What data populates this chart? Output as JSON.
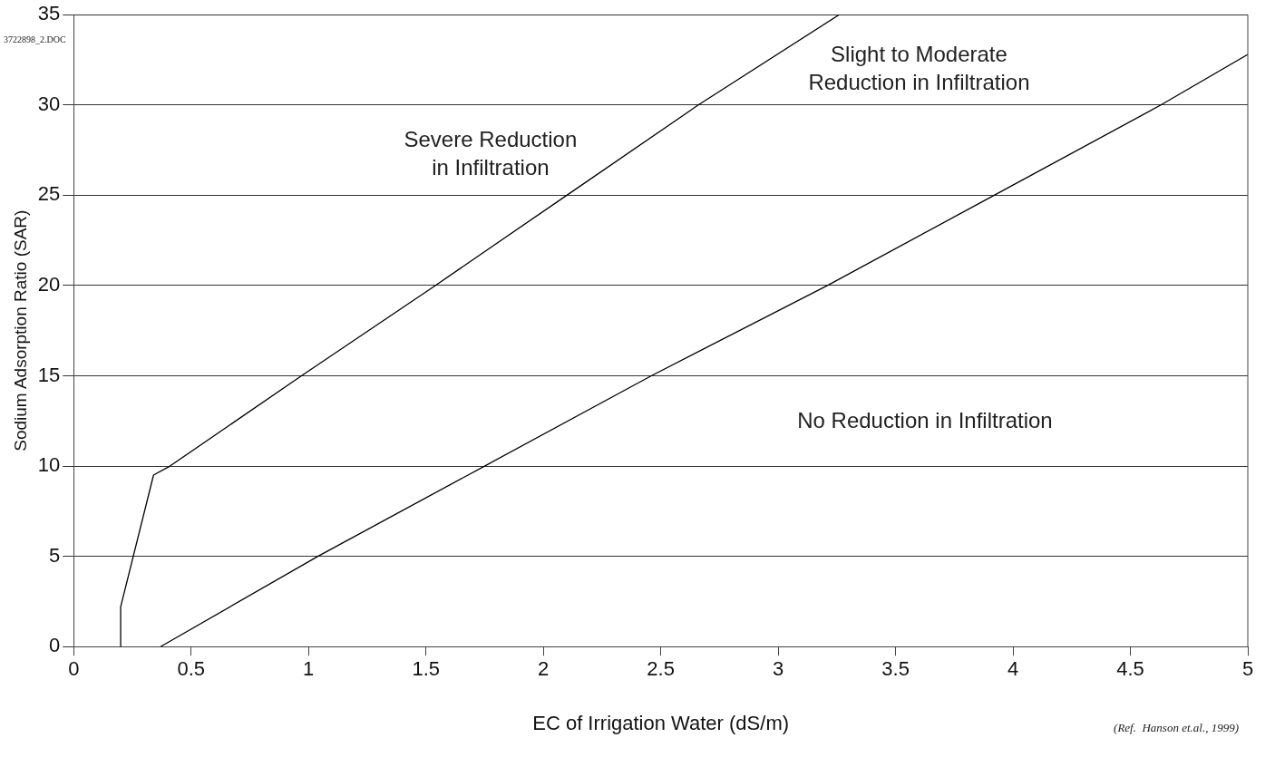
{
  "chart_data": {
    "type": "line",
    "xlabel": "EC of Irrigation Water (dS/m)",
    "ylabel": "Sodium Adsorption Ratio (SAR)",
    "xlim": [
      0,
      5
    ],
    "xticks": [
      0,
      0.5,
      1,
      1.5,
      2,
      2.5,
      3,
      3.5,
      4,
      4.5,
      5
    ],
    "ylim": [
      0,
      35
    ],
    "yticks": [
      0,
      5,
      10,
      15,
      20,
      25,
      30,
      35
    ],
    "grid": "y",
    "legend": false,
    "marker": "none",
    "line_style": "solid",
    "series": [
      {
        "color": "#000000",
        "x": [
          0.2,
          0.2,
          0.34,
          0.41,
          0.97,
          1.54,
          2.1,
          2.66,
          3.26
        ],
        "values": [
          0,
          2.2,
          9.5,
          10,
          15,
          20,
          25,
          30,
          35
        ]
      },
      {
        "color": "#000000",
        "x": [
          0.37,
          1.04,
          1.75,
          2.46,
          3.21,
          3.92,
          4.63,
          5
        ],
        "values": [
          0,
          5,
          10,
          15,
          20,
          25,
          30,
          32.8
        ]
      }
    ],
    "annotations": [
      "Severe Reduction\nin Infiltration",
      "Slight to Moderate\nReduction in Infiltration",
      "No Reduction in Infiltration",
      "3722898_2.DOC",
      "(Ref.  Hanson et.al., 1999)"
    ]
  }
}
